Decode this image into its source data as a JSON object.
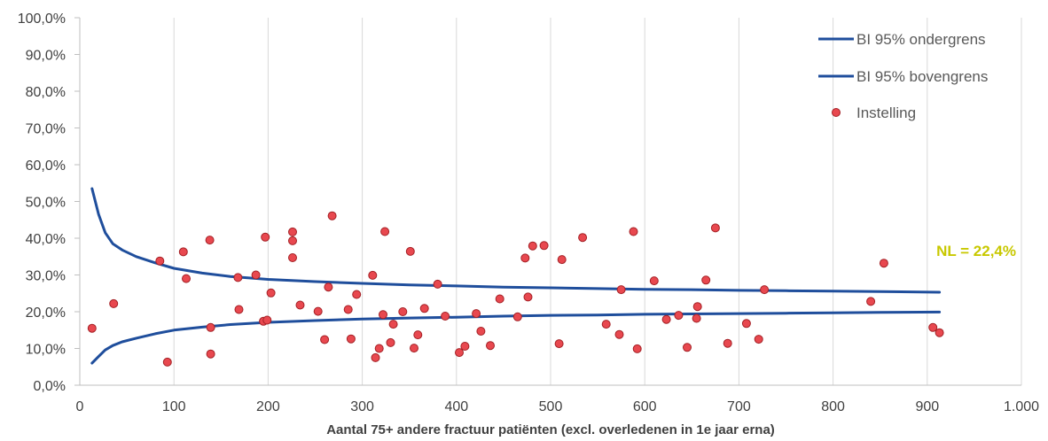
{
  "chart_data": {
    "type": "scatter",
    "xlabel": "Aantal 75+ andere fractuur patiënten (excl. overledenen in 1e jaar erna)",
    "ylabel": "",
    "xlim": [
      0,
      1000
    ],
    "ylim": [
      0,
      100
    ],
    "x_ticks": [
      0,
      100,
      200,
      300,
      400,
      500,
      600,
      700,
      800,
      900,
      1000
    ],
    "x_tick_labels": [
      "0",
      "100",
      "200",
      "300",
      "400",
      "500",
      "600",
      "700",
      "800",
      "900",
      "1.000"
    ],
    "y_ticks": [
      0,
      10,
      20,
      30,
      40,
      50,
      60,
      70,
      80,
      90,
      100
    ],
    "y_tick_labels": [
      "0,0%",
      "10,0%",
      "20,0%",
      "30,0%",
      "40,0%",
      "50,0%",
      "60,0%",
      "70,0%",
      "80,0%",
      "90,0%",
      "100,0%"
    ],
    "grid": "vertical",
    "legend_position": "top-right",
    "series": [
      {
        "name": "BI 95% ondergrens",
        "type": "line",
        "color": "#1f4e9c",
        "x": [
          13,
          20,
          27,
          35,
          45,
          60,
          80,
          100,
          130,
          160,
          200,
          250,
          300,
          350,
          400,
          450,
          500,
          550,
          600,
          650,
          700,
          750,
          800,
          850,
          913
        ],
        "y": [
          6.0,
          7.8,
          9.6,
          10.8,
          11.8,
          12.8,
          14.0,
          15.0,
          15.8,
          16.5,
          17.1,
          17.6,
          18.0,
          18.3,
          18.5,
          18.8,
          19.0,
          19.1,
          19.3,
          19.4,
          19.5,
          19.6,
          19.7,
          19.8,
          19.9
        ]
      },
      {
        "name": "BI 95% bovengrens",
        "type": "line",
        "color": "#1f4e9c",
        "x": [
          13,
          20,
          27,
          35,
          45,
          60,
          80,
          100,
          130,
          160,
          200,
          250,
          300,
          350,
          400,
          450,
          500,
          550,
          600,
          650,
          700,
          750,
          800,
          850,
          913
        ],
        "y": [
          53.5,
          46.5,
          41.5,
          38.5,
          36.8,
          35.0,
          33.3,
          31.8,
          30.5,
          29.6,
          28.8,
          28.2,
          27.7,
          27.3,
          27.0,
          26.7,
          26.5,
          26.3,
          26.1,
          26.0,
          25.8,
          25.7,
          25.6,
          25.5,
          25.3
        ]
      },
      {
        "name": "Instelling",
        "type": "scatter",
        "color": "#e8484f",
        "points": [
          [
            13,
            15.5
          ],
          [
            36,
            22.2
          ],
          [
            85,
            33.8
          ],
          [
            93,
            6.3
          ],
          [
            110,
            36.3
          ],
          [
            113,
            29.0
          ],
          [
            138,
            39.5
          ],
          [
            139,
            15.7
          ],
          [
            139,
            8.5
          ],
          [
            168,
            29.3
          ],
          [
            169,
            20.6
          ],
          [
            187,
            30.0
          ],
          [
            195,
            17.4
          ],
          [
            197,
            40.3
          ],
          [
            199,
            17.7
          ],
          [
            203,
            25.1
          ],
          [
            226,
            41.7
          ],
          [
            226,
            39.3
          ],
          [
            226,
            34.7
          ],
          [
            234,
            21.8
          ],
          [
            253,
            20.1
          ],
          [
            260,
            12.4
          ],
          [
            264,
            26.7
          ],
          [
            268,
            46.1
          ],
          [
            285,
            20.6
          ],
          [
            288,
            12.6
          ],
          [
            294,
            24.7
          ],
          [
            311,
            29.9
          ],
          [
            314,
            7.5
          ],
          [
            318,
            10.0
          ],
          [
            322,
            19.2
          ],
          [
            324,
            41.8
          ],
          [
            330,
            11.6
          ],
          [
            333,
            16.6
          ],
          [
            343,
            20.0
          ],
          [
            351,
            36.4
          ],
          [
            355,
            10.1
          ],
          [
            359,
            13.7
          ],
          [
            366,
            20.9
          ],
          [
            380,
            27.5
          ],
          [
            388,
            18.8
          ],
          [
            403,
            8.9
          ],
          [
            409,
            10.6
          ],
          [
            421,
            19.5
          ],
          [
            426,
            14.7
          ],
          [
            436,
            10.8
          ],
          [
            446,
            23.5
          ],
          [
            465,
            18.6
          ],
          [
            473,
            34.6
          ],
          [
            476,
            24.0
          ],
          [
            481,
            37.9
          ],
          [
            493,
            38.0
          ],
          [
            509,
            11.3
          ],
          [
            512,
            34.2
          ],
          [
            534,
            40.2
          ],
          [
            559,
            16.6
          ],
          [
            573,
            13.8
          ],
          [
            575,
            26.0
          ],
          [
            588,
            41.8
          ],
          [
            592,
            9.9
          ],
          [
            610,
            28.4
          ],
          [
            623,
            17.9
          ],
          [
            636,
            19.0
          ],
          [
            645,
            10.3
          ],
          [
            655,
            18.2
          ],
          [
            656,
            21.4
          ],
          [
            665,
            28.6
          ],
          [
            675,
            42.8
          ],
          [
            688,
            11.4
          ],
          [
            708,
            16.8
          ],
          [
            721,
            12.5
          ],
          [
            727,
            26.0
          ],
          [
            840,
            22.8
          ],
          [
            854,
            33.2
          ],
          [
            906,
            15.7
          ],
          [
            913,
            14.3
          ]
        ]
      }
    ],
    "annotations": [
      {
        "text": "NL = 22,4%",
        "color": "#c8c800"
      }
    ]
  }
}
